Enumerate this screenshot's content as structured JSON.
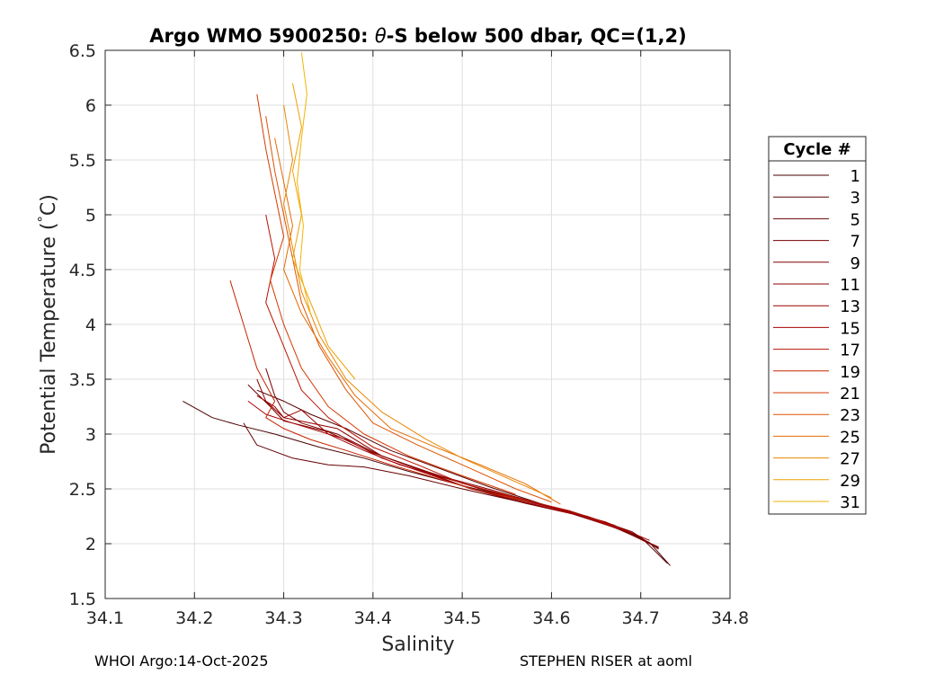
{
  "chart_data": {
    "type": "line",
    "title": "Argo WMO 5900250: θ-S below 500 dbar,  QC=(1,2)",
    "title_parts": [
      "Argo WMO 5900250: ",
      "θ",
      "-S below 500 dbar,  QC=(1,2)"
    ],
    "xlabel": "Salinity",
    "ylabel_parts": [
      "Potential Temperature (",
      "°",
      "C)"
    ],
    "xlim": [
      34.1,
      34.8
    ],
    "ylim": [
      1.5,
      6.5
    ],
    "xticks": [
      34.1,
      34.2,
      34.3,
      34.4,
      34.5,
      34.6,
      34.7,
      34.8
    ],
    "xtick_labels": [
      "34.1",
      "34.2",
      "34.3",
      "34.4",
      "34.5",
      "34.6",
      "34.7",
      "34.8"
    ],
    "yticks": [
      1.5,
      2,
      2.5,
      3,
      3.5,
      4,
      4.5,
      5,
      5.5,
      6,
      6.5
    ],
    "ytick_labels": [
      "1.5",
      "2",
      "2.5",
      "3",
      "3.5",
      "4",
      "4.5",
      "5",
      "5.5",
      "6",
      "6.5"
    ],
    "grid": true,
    "legend": {
      "title": "Cycle #",
      "placement": "outside-right",
      "entries": [
        "1",
        "3",
        "5",
        "7",
        "9",
        "11",
        "13",
        "15",
        "17",
        "19",
        "21",
        "23",
        "25",
        "27",
        "29",
        "31"
      ]
    },
    "series": [
      {
        "name": "1",
        "color": "#4a0000",
        "x": [
          34.187,
          34.22,
          34.25,
          34.29,
          34.34,
          34.39,
          34.44,
          34.5,
          34.56,
          34.62,
          34.67,
          34.71,
          34.733
        ],
        "y": [
          3.3,
          3.15,
          3.08,
          3.0,
          2.88,
          2.78,
          2.66,
          2.53,
          2.41,
          2.3,
          2.17,
          2.01,
          1.8
        ]
      },
      {
        "name": "3",
        "color": "#580000",
        "x": [
          34.27,
          34.3,
          34.33,
          34.37,
          34.42,
          34.47,
          34.53,
          34.59,
          34.65,
          34.7,
          34.73
        ],
        "y": [
          3.4,
          3.3,
          3.18,
          3.05,
          2.85,
          2.7,
          2.52,
          2.36,
          2.22,
          2.06,
          1.82
        ]
      },
      {
        "name": "5",
        "color": "#650000",
        "x": [
          34.255,
          34.27,
          34.31,
          34.35,
          34.39,
          34.44,
          34.5,
          34.56,
          34.62,
          34.67,
          34.72
        ],
        "y": [
          3.1,
          2.9,
          2.78,
          2.72,
          2.7,
          2.62,
          2.5,
          2.39,
          2.28,
          2.15,
          1.97
        ]
      },
      {
        "name": "7",
        "color": "#730000",
        "x": [
          34.26,
          34.285,
          34.3,
          34.32,
          34.35,
          34.4,
          34.45,
          34.51,
          34.57,
          34.63,
          34.68,
          34.72
        ],
        "y": [
          3.45,
          3.25,
          3.12,
          3.08,
          3.02,
          2.83,
          2.68,
          2.5,
          2.37,
          2.26,
          2.12,
          1.96
        ]
      },
      {
        "name": "9",
        "color": "#800000",
        "x": [
          34.28,
          34.29,
          34.3,
          34.32,
          34.36,
          34.41,
          34.46,
          34.52,
          34.58,
          34.64,
          34.69,
          34.72
        ],
        "y": [
          3.6,
          3.35,
          3.2,
          3.1,
          3.0,
          2.8,
          2.66,
          2.5,
          2.37,
          2.25,
          2.11,
          1.95
        ]
      },
      {
        "name": "11",
        "color": "#8e0000",
        "x": [
          34.27,
          34.28,
          34.3,
          34.33,
          34.36,
          34.41,
          34.46,
          34.52,
          34.58,
          34.63,
          34.68,
          34.72
        ],
        "y": [
          3.5,
          3.3,
          3.15,
          3.1,
          3.05,
          2.8,
          2.65,
          2.52,
          2.38,
          2.27,
          2.12,
          1.96
        ]
      },
      {
        "name": "13",
        "color": "#9c0000",
        "x": [
          34.27,
          34.29,
          34.3,
          34.32,
          34.35,
          34.39,
          34.43,
          34.48,
          34.54,
          34.6,
          34.66,
          34.71
        ],
        "y": [
          3.35,
          3.25,
          3.15,
          3.22,
          3.0,
          2.85,
          2.72,
          2.6,
          2.46,
          2.33,
          2.2,
          2.03
        ]
      },
      {
        "name": "15",
        "color": "#aa0000",
        "x": [
          34.26,
          34.28,
          34.31,
          34.33,
          34.37,
          34.41,
          34.46,
          34.51,
          34.57,
          34.63,
          34.69
        ],
        "y": [
          3.3,
          3.18,
          3.1,
          3.05,
          2.95,
          2.78,
          2.64,
          2.5,
          2.38,
          2.26,
          2.1
        ]
      },
      {
        "name": "17",
        "color": "#b81200",
        "x": [
          34.28,
          34.29,
          34.28,
          34.3,
          34.32,
          34.35,
          34.4,
          34.45,
          34.5,
          34.56,
          34.62,
          34.67
        ],
        "y": [
          5.0,
          4.6,
          4.2,
          3.8,
          3.4,
          3.15,
          2.88,
          2.72,
          2.55,
          2.42,
          2.3,
          2.16
        ]
      },
      {
        "name": "19",
        "color": "#c62400",
        "x": [
          34.24,
          34.255,
          34.27,
          34.29,
          34.28,
          34.3,
          34.33,
          34.37,
          34.42,
          34.47,
          34.52,
          34.58
        ],
        "y": [
          4.4,
          4.0,
          3.6,
          3.3,
          3.15,
          3.05,
          2.95,
          2.85,
          2.72,
          2.6,
          2.48,
          2.38
        ]
      },
      {
        "name": "21",
        "color": "#d43a00",
        "x": [
          34.27,
          34.28,
          34.29,
          34.3,
          34.285,
          34.3,
          34.32,
          34.35,
          34.39,
          34.44,
          34.5,
          34.56
        ],
        "y": [
          6.1,
          5.6,
          5.2,
          4.8,
          4.4,
          4.0,
          3.6,
          3.25,
          3.0,
          2.8,
          2.62,
          2.45
        ]
      },
      {
        "name": "23",
        "color": "#de5200",
        "x": [
          34.28,
          34.29,
          34.3,
          34.31,
          34.32,
          34.34,
          34.37,
          34.4,
          34.45,
          34.5,
          34.56,
          34.6
        ],
        "y": [
          5.9,
          5.4,
          5.0,
          4.6,
          4.2,
          3.8,
          3.4,
          3.1,
          2.9,
          2.72,
          2.5,
          2.38
        ]
      },
      {
        "name": "25",
        "color": "#e46b00",
        "x": [
          34.29,
          34.3,
          34.31,
          34.3,
          34.32,
          34.35,
          34.38,
          34.42,
          34.47,
          34.52,
          34.57,
          34.61
        ],
        "y": [
          5.7,
          5.3,
          4.9,
          4.5,
          4.1,
          3.7,
          3.35,
          3.05,
          2.88,
          2.72,
          2.55,
          2.36
        ]
      },
      {
        "name": "27",
        "color": "#e98700",
        "x": [
          34.3,
          34.31,
          34.3,
          34.31,
          34.32,
          34.34,
          34.37,
          34.41,
          34.46,
          34.5,
          34.55,
          34.6
        ],
        "y": [
          6.0,
          5.5,
          5.1,
          4.7,
          4.3,
          3.9,
          3.5,
          3.2,
          2.95,
          2.78,
          2.6,
          2.42
        ]
      },
      {
        "name": "29",
        "color": "#eea000",
        "x": [
          34.31,
          34.32,
          34.31,
          34.32,
          34.31,
          34.33,
          34.35,
          34.38
        ],
        "y": [
          6.2,
          5.8,
          5.4,
          5.0,
          4.6,
          4.2,
          3.8,
          3.5
        ]
      },
      {
        "name": "31",
        "color": "#f3b400",
        "x": [
          34.32,
          34.326,
          34.32,
          34.315,
          34.322,
          34.318,
          34.33
        ],
        "y": [
          6.48,
          6.1,
          5.7,
          5.3,
          4.9,
          4.5,
          4.1
        ]
      }
    ]
  },
  "footer": {
    "left": "WHOI Argo:14-Oct-2025",
    "right": "STEPHEN RISER at aoml"
  }
}
